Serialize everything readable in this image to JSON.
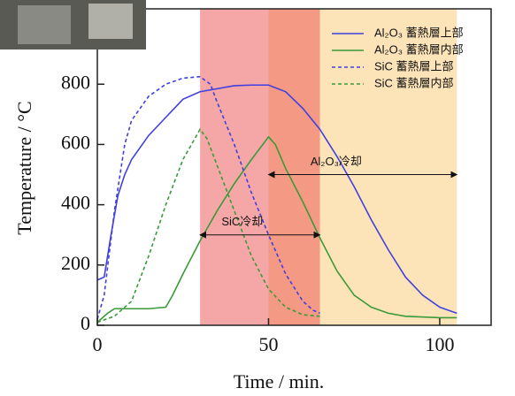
{
  "chart_data": {
    "type": "line",
    "xlabel": "Time / min.",
    "ylabel": "Temperature / °C",
    "xlim": [
      0,
      115
    ],
    "ylim": [
      0,
      1050
    ],
    "xticks": [
      0,
      50,
      100
    ],
    "yticks": [
      0,
      200,
      400,
      600,
      800
    ],
    "legend": "upper right",
    "annotations": [
      {
        "text": "SiC冷却",
        "x_range": [
          30,
          65
        ],
        "color": "#ec5050"
      },
      {
        "text": "Al₂O₃冷却",
        "x_range": [
          50,
          105
        ],
        "color": "#fde4b8"
      }
    ],
    "series": [
      {
        "name": "Al₂O₃ 蓄熱層上部",
        "color": "#4040e0",
        "dashed": false,
        "x": [
          0,
          2,
          4,
          6,
          8,
          10,
          15,
          20,
          25,
          30,
          35,
          40,
          45,
          50,
          55,
          60,
          65,
          70,
          75,
          80,
          85,
          90,
          95,
          100,
          105
        ],
        "values": [
          150,
          160,
          300,
          430,
          500,
          550,
          630,
          690,
          750,
          775,
          785,
          795,
          797,
          797,
          775,
          720,
          650,
          560,
          460,
          350,
          250,
          160,
          100,
          60,
          40
        ]
      },
      {
        "name": "Al₂O₃ 蓄熱層内部",
        "color": "#3a9a3a",
        "dashed": false,
        "x": [
          0,
          3,
          5,
          10,
          15,
          20,
          22,
          25,
          30,
          35,
          40,
          45,
          50,
          52,
          55,
          60,
          65,
          70,
          75,
          80,
          85,
          90,
          100,
          105
        ],
        "values": [
          10,
          40,
          55,
          55,
          55,
          60,
          100,
          170,
          280,
          380,
          470,
          550,
          625,
          600,
          520,
          410,
          290,
          180,
          100,
          60,
          40,
          30,
          25,
          25
        ]
      },
      {
        "name": "SiC 蓄熱層上部",
        "color": "#4040e0",
        "dashed": true,
        "x": [
          0,
          2,
          5,
          8,
          10,
          15,
          20,
          25,
          30,
          33,
          35,
          40,
          45,
          50,
          55,
          60,
          63,
          65
        ],
        "values": [
          20,
          100,
          380,
          600,
          680,
          760,
          800,
          820,
          825,
          800,
          740,
          600,
          440,
          300,
          170,
          80,
          50,
          40
        ]
      },
      {
        "name": "SiC 蓄熱層内部",
        "color": "#3a9a3a",
        "dashed": true,
        "x": [
          0,
          5,
          10,
          15,
          20,
          25,
          30,
          32,
          35,
          40,
          45,
          50,
          55,
          60,
          65
        ],
        "values": [
          10,
          30,
          80,
          230,
          400,
          550,
          650,
          620,
          530,
          380,
          230,
          120,
          60,
          35,
          30
        ]
      }
    ]
  }
}
